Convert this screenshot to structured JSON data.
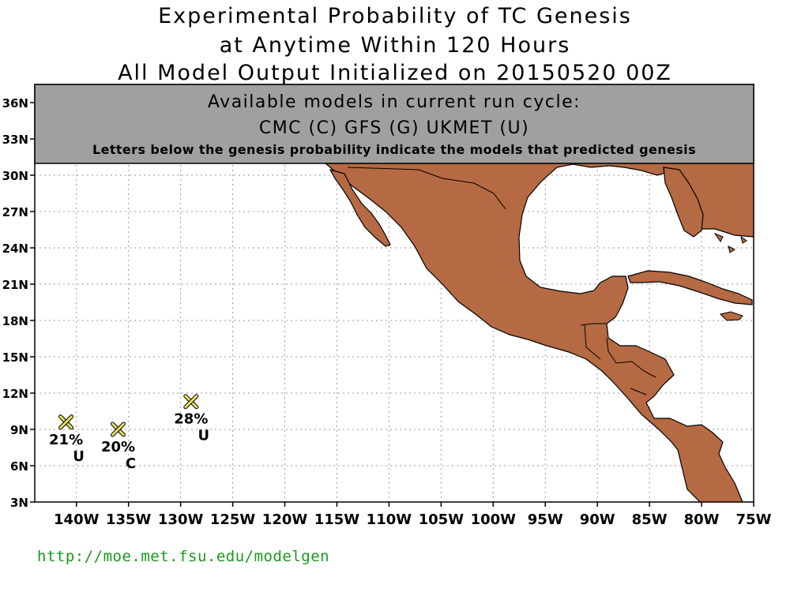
{
  "title": {
    "line1": "Experimental Probability of TC Genesis",
    "line2": "at Anytime Within 120 Hours",
    "line3": "All Model Output Initialized on 20150520 00Z"
  },
  "banner": {
    "heading": "Available models in current run cycle:",
    "models": "CMC (C) GFS (G)  UKMET (U)",
    "note": "Letters below the genesis probability indicate the models that predicted genesis"
  },
  "axes": {
    "lon_ticks": [
      -140,
      -135,
      -130,
      -125,
      -120,
      -115,
      -110,
      -105,
      -100,
      -95,
      -90,
      -85,
      -80,
      -75
    ],
    "lon_labels": [
      "140W",
      "135W",
      "130W",
      "125W",
      "120W",
      "115W",
      "110W",
      "105W",
      "100W",
      "95W",
      "90W",
      "85W",
      "80W",
      "75W"
    ],
    "lat_ticks": [
      3,
      6,
      9,
      12,
      15,
      18,
      21,
      24,
      27,
      30,
      33,
      36
    ],
    "lat_labels": [
      "3N",
      "6N",
      "9N",
      "12N",
      "15N",
      "18N",
      "21N",
      "24N",
      "27N",
      "30N",
      "33N",
      "36N"
    ],
    "lon_range": [
      -144,
      -75
    ],
    "lat_range": [
      3,
      37.5
    ],
    "grid": true
  },
  "colors": {
    "land": "#b56a43",
    "banner": "#a0a0a0",
    "marker": "#e8e060",
    "footer": "#1a9a1a"
  },
  "markers": [
    {
      "lon": -141,
      "lat": 9.6,
      "prob": "21%",
      "models": "U"
    },
    {
      "lon": -136,
      "lat": 9.0,
      "prob": "20%",
      "models": "C"
    },
    {
      "lon": -129,
      "lat": 11.3,
      "prob": "28%",
      "models": "U"
    }
  ],
  "marker_icon": "x-mark-icon",
  "footer": {
    "url": "http://moe.met.fsu.edu/modelgen"
  }
}
